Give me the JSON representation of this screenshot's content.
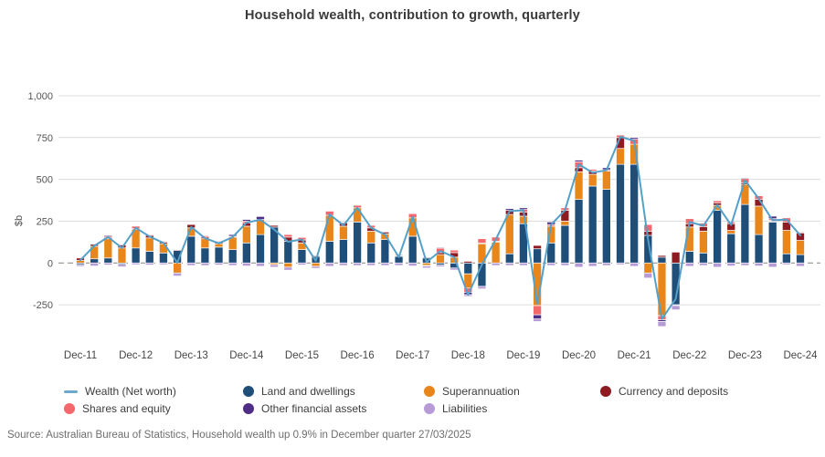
{
  "title": "Household wealth, contribution to growth, quarterly",
  "source": "Source: Australian Bureau of Statistics, Household wealth up 0.9% in December quarter 27/03/2025",
  "y_axis": {
    "label": "$b",
    "tick_labels": [
      "1,000",
      "750",
      "500",
      "250",
      "0",
      "-250"
    ],
    "tick_values": [
      1000,
      750,
      500,
      250,
      0,
      -250
    ]
  },
  "x_axis": {
    "tick_labels": [
      "Dec-11",
      "Dec-12",
      "Dec-13",
      "Dec-14",
      "Dec-15",
      "Dec-16",
      "Dec-17",
      "Dec-18",
      "Dec-19",
      "Dec-20",
      "Dec-21",
      "Dec-22",
      "Dec-23",
      "Dec-24"
    ],
    "tick_every_n_bars": 4
  },
  "legend": {
    "items": [
      {
        "label": "Wealth (Net worth)",
        "marker": "line",
        "color": "#6ca9cd",
        "col": 0,
        "row": 0
      },
      {
        "label": "Land and dwellings",
        "marker": "dot",
        "color": "#1f4e79",
        "col": 1,
        "row": 0
      },
      {
        "label": "Superannuation",
        "marker": "dot",
        "color": "#e8861c",
        "col": 2,
        "row": 0
      },
      {
        "label": "Currency and deposits",
        "marker": "dot",
        "color": "#8e1b21",
        "col": 3,
        "row": 0
      },
      {
        "label": "Shares and equity",
        "marker": "dot",
        "color": "#f4686c",
        "col": 0,
        "row": 1
      },
      {
        "label": "Other financial assets",
        "marker": "dot",
        "color": "#4f2d87",
        "col": 1,
        "row": 1
      },
      {
        "label": "Liabilities",
        "marker": "dot",
        "color": "#b79bd6",
        "col": 2,
        "row": 1
      }
    ]
  },
  "colors": {
    "line": "#55a0c8",
    "grid": "#dcdcdc",
    "zero_line": "#93938a",
    "axis_text": "#555555",
    "x_text": "#454545"
  },
  "chart_data": {
    "type": "bar",
    "subtype": "stacked-bars-with-net-line",
    "title": "Household wealth, contribution to growth, quarterly",
    "xlabel": "",
    "ylabel": "$b",
    "ylim": [
      -450,
      1050
    ],
    "grid": true,
    "legend_position": "bottom",
    "x": [
      "Dec-11",
      "Mar-12",
      "Jun-12",
      "Sep-12",
      "Dec-12",
      "Mar-13",
      "Jun-13",
      "Sep-13",
      "Dec-13",
      "Mar-14",
      "Jun-14",
      "Sep-14",
      "Dec-14",
      "Mar-15",
      "Jun-15",
      "Sep-15",
      "Dec-15",
      "Mar-16",
      "Jun-16",
      "Sep-16",
      "Dec-16",
      "Mar-17",
      "Jun-17",
      "Sep-17",
      "Dec-17",
      "Mar-18",
      "Jun-18",
      "Sep-18",
      "Dec-18",
      "Mar-19",
      "Jun-19",
      "Sep-19",
      "Dec-19",
      "Mar-20",
      "Jun-20",
      "Sep-20",
      "Dec-20",
      "Mar-21",
      "Jun-21",
      "Sep-21",
      "Dec-21",
      "Mar-22",
      "Jun-22",
      "Sep-22",
      "Dec-22",
      "Mar-23",
      "Jun-23",
      "Sep-23",
      "Dec-23",
      "Mar-24",
      "Jun-24",
      "Sep-24",
      "Dec-24"
    ],
    "series": [
      {
        "name": "Land and dwellings",
        "color": "#1f4e79",
        "values": [
          -10,
          25,
          30,
          -8,
          90,
          70,
          60,
          75,
          160,
          90,
          95,
          80,
          120,
          170,
          215,
          130,
          80,
          40,
          130,
          140,
          245,
          120,
          140,
          40,
          160,
          30,
          -12,
          -30,
          -65,
          -140,
          0,
          55,
          235,
          85,
          120,
          225,
          380,
          460,
          440,
          590,
          590,
          165,
          35,
          -250,
          70,
          60,
          315,
          175,
          350,
          170,
          245,
          55,
          50
        ]
      },
      {
        "name": "Superannuation",
        "color": "#e8861c",
        "values": [
          15,
          75,
          115,
          90,
          110,
          80,
          55,
          -60,
          50,
          55,
          20,
          75,
          100,
          90,
          -10,
          -25,
          40,
          -20,
          155,
          80,
          85,
          70,
          35,
          5,
          110,
          -15,
          50,
          35,
          -85,
          115,
          125,
          235,
          45,
          -255,
          100,
          25,
          165,
          70,
          110,
          95,
          120,
          -60,
          -315,
          0,
          145,
          130,
          30,
          20,
          120,
          170,
          5,
          140,
          85
        ]
      },
      {
        "name": "Currency and deposits",
        "color": "#8e1b21",
        "values": [
          15,
          12,
          8,
          18,
          5,
          15,
          10,
          5,
          20,
          10,
          10,
          0,
          20,
          0,
          10,
          25,
          18,
          5,
          0,
          20,
          0,
          20,
          10,
          5,
          0,
          5,
          12,
          27,
          10,
          5,
          5,
          25,
          25,
          20,
          0,
          65,
          25,
          20,
          0,
          65,
          0,
          25,
          10,
          65,
          20,
          28,
          15,
          40,
          10,
          40,
          5,
          50,
          45
        ]
      },
      {
        "name": "Shares and equity",
        "color": "#f4686c",
        "values": [
          5,
          5,
          8,
          5,
          15,
          5,
          5,
          0,
          0,
          8,
          5,
          5,
          10,
          0,
          0,
          15,
          15,
          0,
          25,
          0,
          15,
          15,
          0,
          0,
          25,
          -3,
          27,
          15,
          -25,
          25,
          25,
          0,
          15,
          -55,
          10,
          15,
          35,
          10,
          8,
          15,
          30,
          40,
          -25,
          0,
          30,
          20,
          12,
          10,
          25,
          22,
          10,
          25,
          5
        ]
      },
      {
        "name": "Other financial assets",
        "color": "#4f2d87",
        "values": [
          2,
          3,
          6,
          0,
          0,
          0,
          0,
          0,
          0,
          0,
          0,
          10,
          10,
          18,
          0,
          0,
          0,
          0,
          0,
          0,
          0,
          0,
          0,
          0,
          0,
          0,
          5,
          0,
          -15,
          0,
          0,
          10,
          10,
          -25,
          15,
          0,
          10,
          0,
          12,
          0,
          10,
          0,
          -10,
          -5,
          0,
          0,
          0,
          0,
          5,
          0,
          15,
          0,
          0
        ]
      },
      {
        "name": "Liabilities",
        "color": "#b79bd6",
        "values": [
          -10,
          -18,
          -12,
          -15,
          -10,
          -12,
          -10,
          -18,
          -15,
          -15,
          -12,
          -15,
          -18,
          -20,
          -15,
          -18,
          -12,
          -12,
          -20,
          -15,
          -15,
          -15,
          -15,
          -15,
          -18,
          -12,
          -10,
          -12,
          -10,
          -15,
          -15,
          -15,
          -15,
          -15,
          -15,
          -15,
          -25,
          -20,
          -15,
          -10,
          -20,
          -30,
          -30,
          -25,
          -20,
          -15,
          -25,
          -18,
          -15,
          -18,
          -25,
          -10,
          -20
        ]
      }
    ],
    "line_series": {
      "name": "Wealth (Net worth)",
      "color": "#55a0c8",
      "values": [
        17,
        102,
        155,
        90,
        210,
        158,
        120,
        2,
        215,
        148,
        118,
        155,
        242,
        258,
        200,
        127,
        141,
        13,
        290,
        225,
        330,
        210,
        170,
        35,
        277,
        5,
        72,
        35,
        -190,
        -10,
        140,
        310,
        315,
        -245,
        230,
        315,
        590,
        540,
        555,
        755,
        730,
        140,
        -335,
        -215,
        245,
        223,
        347,
        227,
        495,
        384,
        255,
        260,
        165
      ]
    }
  }
}
